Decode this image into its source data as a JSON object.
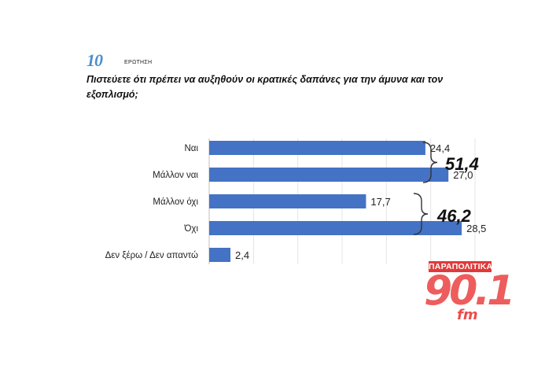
{
  "question": {
    "number": "10",
    "label": "ΕΡΩΤΗΣΗ",
    "text": "Πιστεύετε ότι πρέπει να αυξηθούν οι κρατικές δαπάνες για την άμυνα και τον εξοπλισμό;"
  },
  "chart_data": {
    "type": "bar",
    "orientation": "horizontal",
    "categories": [
      "Ναι",
      "Μάλλον ναι",
      "Μάλλον όχι",
      "Όχι",
      "Δεν ξέρω / Δεν απαντώ"
    ],
    "values": [
      24.4,
      27.0,
      17.7,
      28.5,
      2.4
    ],
    "value_labels": [
      "24,4",
      "27,0",
      "17,7",
      "28,5",
      "2,4"
    ],
    "xlim": [
      0,
      30
    ],
    "grid": "vertical",
    "bar_color": "#4472c4",
    "groups": [
      {
        "label": "51,4",
        "members": [
          0,
          1
        ]
      },
      {
        "label": "46,2",
        "members": [
          2,
          3
        ]
      }
    ]
  },
  "logo": {
    "top": "ΠΑΡΑΠΟΛΙΤΙΚΑ",
    "number": "90.1",
    "suffix": "fm"
  }
}
